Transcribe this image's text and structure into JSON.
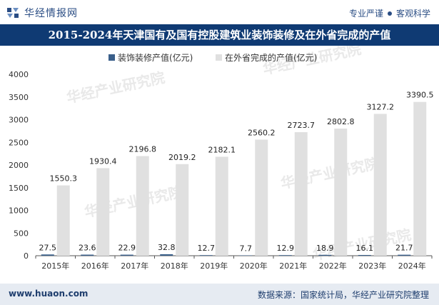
{
  "header": {
    "brand": "华经情报网",
    "slogan_left": "专业严谨",
    "slogan_right": "客观科学"
  },
  "title": "2015-2024年天津国有及国有控股建筑业装饰装修及在外省完成的产值",
  "footer": {
    "url": "www.huaon.com",
    "source": "数据来源：国家统计局，华经产业研究院整理"
  },
  "colors": {
    "title_bg": "#0f3a73",
    "series1": "#3a5f8a",
    "series2": "#e0e0e0"
  },
  "chart_data": {
    "type": "bar",
    "title": "2015-2024年天津国有及国有控股建筑业装饰装修及在外省完成的产值",
    "categories": [
      "2015年",
      "2016年",
      "2017年",
      "2018年",
      "2019年",
      "2020年",
      "2021年",
      "2022年",
      "2023年",
      "2024年"
    ],
    "series": [
      {
        "name": "装饰装修产值(亿元)",
        "values": [
          27.5,
          23.6,
          22.9,
          32.8,
          12.7,
          7.7,
          12.9,
          18.9,
          16.1,
          21.7
        ]
      },
      {
        "name": "在外省完成的产值(亿元)",
        "values": [
          1550.3,
          1930.4,
          2196.8,
          2019.2,
          2182.1,
          2560.2,
          2723.7,
          2802.8,
          3127.2,
          3390.5
        ]
      }
    ],
    "ylim": [
      0,
      4000
    ],
    "yticks": [
      0,
      500,
      1000,
      1500,
      2000,
      2500,
      3000,
      3500,
      4000
    ],
    "xlabel": "",
    "ylabel": "",
    "legend_position": "top-center"
  }
}
